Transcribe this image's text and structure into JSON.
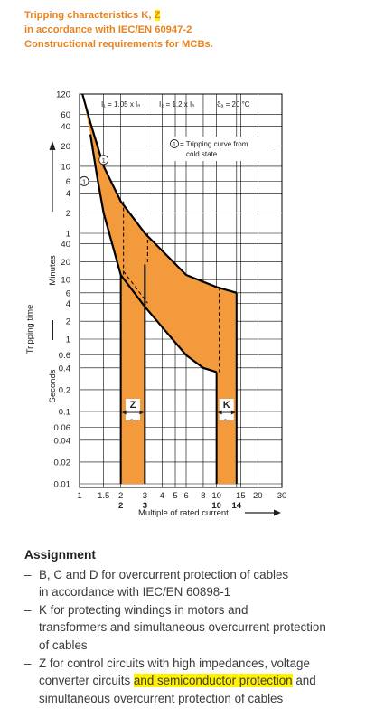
{
  "header": {
    "line1_pre": "Tripping characteristics K, ",
    "line1_hl": "Z",
    "line2": "in accordance with IEC/EN 60947-2",
    "line3": "Constructional requirements for MCBs."
  },
  "chart_data": {
    "type": "area",
    "title": "",
    "xlabel": "Multiple of rated current",
    "ylabel": "Tripping time",
    "x_scale": "log",
    "x_ticks": [
      1,
      1.5,
      2,
      3,
      4,
      5,
      6,
      8,
      10,
      15,
      20,
      30
    ],
    "x_tick_labels": [
      "1",
      "1.5",
      "2",
      "3",
      "4",
      "5",
      "6",
      "8",
      "10",
      "15",
      "20",
      "30"
    ],
    "x_marks": [
      {
        "x": 2,
        "label": "2"
      },
      {
        "x": 3,
        "label": "3"
      },
      {
        "x": 10,
        "label": "10"
      },
      {
        "x": 14,
        "label": "14"
      }
    ],
    "y_units": [
      {
        "label": "Minutes",
        "ticks": [
          120,
          60,
          40,
          20,
          10,
          6,
          4,
          2,
          1
        ]
      },
      {
        "label": "Seconds",
        "ticks": [
          40,
          20,
          10,
          6,
          4,
          2,
          1,
          0.6,
          0.4,
          0.2,
          0.1,
          0.06,
          0.04,
          0.02,
          0.01
        ]
      }
    ],
    "y_scale": "log",
    "ylim_seconds": [
      0.01,
      7200
    ],
    "grid": true,
    "annotations": {
      "i1": "I₁ = 1.05 x Iₙ",
      "i2": "I₂ = 1.2 x Iₙ",
      "temp": "ϑₐ = 20 °C",
      "legend_symbol": "1",
      "legend_text_1": "= Tripping curve from",
      "legend_text_2": "cold state",
      "z_band": "Z",
      "k_band": "K",
      "tilde": "~"
    },
    "series": [
      {
        "name": "Z",
        "upper_seconds": [
          [
            1.05,
            7200
          ],
          [
            1.2,
            2700
          ],
          [
            1.5,
            600
          ],
          [
            2,
            180
          ],
          [
            3,
            18
          ],
          [
            3,
            0.01
          ]
        ],
        "lower_seconds": [
          [
            1.2,
            1800
          ],
          [
            1.5,
            120
          ],
          [
            2,
            12
          ],
          [
            2,
            0.01
          ]
        ]
      },
      {
        "name": "K",
        "upper_seconds": [
          [
            3,
            60
          ],
          [
            6,
            12
          ],
          [
            8,
            9.5
          ],
          [
            10,
            7.5
          ],
          [
            14,
            6
          ],
          [
            14,
            0.01
          ]
        ],
        "lower_seconds": [
          [
            2,
            12
          ],
          [
            3,
            3.5
          ],
          [
            6,
            0.6
          ],
          [
            8,
            0.4
          ],
          [
            10,
            0.35
          ],
          [
            10,
            0.01
          ]
        ]
      }
    ],
    "curve_markers": [
      {
        "label": "1",
        "x": 1.08,
        "y_seconds": 360
      },
      {
        "label": "1",
        "x": 1.5,
        "y_seconds": 750
      }
    ],
    "colors": {
      "fill": "#f29a3c",
      "stroke": "#000000",
      "grid": "#000000"
    }
  },
  "assignment": {
    "heading": "Assignment",
    "items": [
      {
        "lines": [
          [
            "B, C and D for overcurrent protection of cables"
          ],
          [
            "in accordance with IEC/EN 60898-1"
          ]
        ]
      },
      {
        "lines": [
          [
            "K for protecting windings in motors and"
          ],
          [
            "transformers and simultaneous overcurrent protection"
          ],
          [
            "of cables"
          ]
        ]
      },
      {
        "lines": [
          [
            "Z for control circuits with high impedances, voltage"
          ],
          [
            "converter circuits ",
            "and semiconductor protection",
            " and"
          ],
          [
            "simultaneous overcurrent protection of cables"
          ]
        ]
      }
    ],
    "dash": "–"
  }
}
